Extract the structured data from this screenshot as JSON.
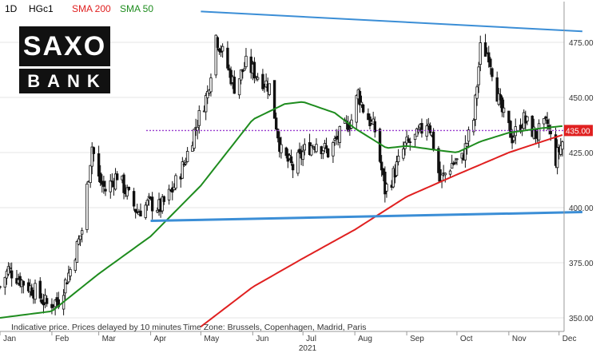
{
  "header": {
    "timeframe": "1D",
    "symbol": "HGc1",
    "sma200_label": "SMA 200",
    "sma50_label": "SMA 50",
    "sma200_color": "#e02020",
    "sma50_color": "#1e8c1e"
  },
  "logo": {
    "top": "SAXO",
    "bottom": "BANK"
  },
  "footer": {
    "disclaimer": "Indicative price. Prices delayed by 10 minutes",
    "timezone": "Time Zone: Brussels, Copenhagen, Madrid, Paris"
  },
  "chart_data": {
    "type": "candlestick",
    "symbol": "HGc1",
    "year_label": "2021",
    "x_ticks": [
      "Jan",
      "Feb",
      "Mar",
      "Apr",
      "May",
      "Jun",
      "Jul",
      "Aug",
      "Sep",
      "Oct",
      "Nov",
      "Dec"
    ],
    "y_ticks": [
      350,
      375,
      400,
      425,
      450,
      475
    ],
    "y_tick_labels": [
      "350.00",
      "375.00",
      "400.00",
      "425.00",
      "450.00",
      "475.00"
    ],
    "ylim": [
      345,
      490
    ],
    "last_price": 435.0,
    "last_price_label": "435.00",
    "price_anchors": [
      [
        "2021-01-01",
        364
      ],
      [
        "2021-01-06",
        372
      ],
      [
        "2021-01-15",
        366
      ],
      [
        "2021-01-22",
        362
      ],
      [
        "2021-01-29",
        356
      ],
      [
        "2021-02-05",
        358
      ],
      [
        "2021-02-12",
        372
      ],
      [
        "2021-02-19",
        390
      ],
      [
        "2021-02-25",
        428
      ],
      [
        "2021-03-01",
        413
      ],
      [
        "2021-03-05",
        408
      ],
      [
        "2021-03-12",
        415
      ],
      [
        "2021-03-19",
        405
      ],
      [
        "2021-03-24",
        398
      ],
      [
        "2021-03-31",
        402
      ],
      [
        "2021-04-07",
        400
      ],
      [
        "2021-04-14",
        408
      ],
      [
        "2021-04-21",
        420
      ],
      [
        "2021-04-28",
        437
      ],
      [
        "2021-05-05",
        452
      ],
      [
        "2021-05-10",
        478
      ],
      [
        "2021-05-14",
        470
      ],
      [
        "2021-05-21",
        455
      ],
      [
        "2021-05-28",
        465
      ],
      [
        "2021-06-04",
        460
      ],
      [
        "2021-06-11",
        455
      ],
      [
        "2021-06-18",
        425
      ],
      [
        "2021-06-25",
        418
      ],
      [
        "2021-07-02",
        426
      ],
      [
        "2021-07-09",
        430
      ],
      [
        "2021-07-16",
        425
      ],
      [
        "2021-07-23",
        433
      ],
      [
        "2021-07-30",
        440
      ],
      [
        "2021-08-03",
        452
      ],
      [
        "2021-08-06",
        445
      ],
      [
        "2021-08-13",
        435
      ],
      [
        "2021-08-19",
        408
      ],
      [
        "2021-08-23",
        413
      ],
      [
        "2021-08-31",
        428
      ],
      [
        "2021-09-07",
        432
      ],
      [
        "2021-09-14",
        440
      ],
      [
        "2021-09-21",
        412
      ],
      [
        "2021-09-28",
        420
      ],
      [
        "2021-10-04",
        422
      ],
      [
        "2021-10-11",
        440
      ],
      [
        "2021-10-15",
        472
      ],
      [
        "2021-10-20",
        470
      ],
      [
        "2021-10-27",
        445
      ],
      [
        "2021-11-03",
        432
      ],
      [
        "2021-11-10",
        440
      ],
      [
        "2021-11-17",
        433
      ],
      [
        "2021-11-24",
        438
      ],
      [
        "2021-11-29",
        422
      ],
      [
        "2021-12-03",
        430
      ]
    ],
    "sma200": [
      [
        "2021-05-01",
        346
      ],
      [
        "2021-06-01",
        364
      ],
      [
        "2021-07-01",
        377
      ],
      [
        "2021-08-01",
        390
      ],
      [
        "2021-09-01",
        405
      ],
      [
        "2021-10-01",
        415
      ],
      [
        "2021-11-01",
        425
      ],
      [
        "2021-12-03",
        433
      ]
    ],
    "sma50": [
      [
        "2021-01-01",
        350
      ],
      [
        "2021-02-01",
        353
      ],
      [
        "2021-03-01",
        370
      ],
      [
        "2021-04-01",
        387
      ],
      [
        "2021-05-01",
        410
      ],
      [
        "2021-06-01",
        440
      ],
      [
        "2021-06-20",
        447
      ],
      [
        "2021-07-01",
        448
      ],
      [
        "2021-07-20",
        443
      ],
      [
        "2021-08-01",
        436
      ],
      [
        "2021-08-20",
        427
      ],
      [
        "2021-09-01",
        428
      ],
      [
        "2021-09-20",
        426
      ],
      [
        "2021-10-01",
        425
      ],
      [
        "2021-10-15",
        430
      ],
      [
        "2021-11-01",
        434
      ],
      [
        "2021-11-20",
        436
      ],
      [
        "2021-12-03",
        437
      ]
    ],
    "trendline_upper": [
      [
        "2021-05-01",
        489
      ],
      [
        "2021-12-03",
        480
      ]
    ],
    "trendline_lower": [
      [
        "2021-04-01",
        394
      ],
      [
        "2021-12-03",
        398
      ]
    ],
    "horizontal_line": 435.0,
    "colors": {
      "candle": "#111111",
      "trendline": "#3b8ed6",
      "horizontal_line": "#9a3fcf",
      "price_tag_bg": "#e02020",
      "axis_text": "#333333",
      "grid": "#e6e6e6"
    }
  }
}
